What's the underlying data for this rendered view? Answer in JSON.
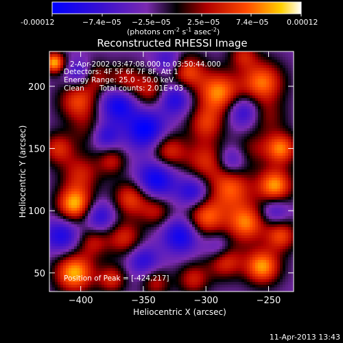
{
  "colorbar": {
    "ticks": [
      "-0.00012",
      "−7.4e−05",
      "−2.5e−05",
      "2.5e−05",
      "7.4e−05",
      "0.00012"
    ],
    "units": "(photons cm",
    "units_sup1": "-2",
    "units_mid": " s",
    "units_sup2": "-1",
    "units_end": " asec",
    "units_sup3": "-2",
    "units_close": ")"
  },
  "chart_data": {
    "type": "heatmap",
    "title": "Reconstructed RHESSI Image",
    "xlabel": "Heliocentric X (arcsec)",
    "ylabel": "Heliocentric Y (arcsec)",
    "xlim": [
      -425,
      -230
    ],
    "ylim": [
      35,
      228
    ],
    "xticks": [
      -400,
      -350,
      -300,
      -250
    ],
    "yticks": [
      50,
      100,
      150,
      200
    ],
    "colormap": "hot-blue",
    "clim": [
      -0.00012,
      0.00012
    ],
    "annotations": [
      "2-Apr-2002 03:47:08.000 to 03:50:44.000",
      "Detectors: 4F 5F 6F 7F 8F, Att 1",
      "Energy Range: 25.0 - 50.0 keV",
      "Clean",
      "Total counts: 2.01E+03",
      "Position of Peak = [-424,217]"
    ],
    "blobs": [
      {
        "x": -421,
        "y": 219,
        "v": 1.0,
        "r": 6
      },
      {
        "x": -390,
        "y": 208,
        "v": 0.55,
        "r": 9
      },
      {
        "x": -402,
        "y": 188,
        "v": 0.7,
        "r": 11
      },
      {
        "x": -395,
        "y": 165,
        "v": 0.3,
        "r": 10
      },
      {
        "x": -365,
        "y": 205,
        "v": 0.5,
        "r": 9
      },
      {
        "x": -345,
        "y": 197,
        "v": 0.55,
        "r": 10
      },
      {
        "x": -315,
        "y": 212,
        "v": 0.7,
        "r": 10
      },
      {
        "x": -290,
        "y": 195,
        "v": 0.9,
        "r": 12
      },
      {
        "x": -255,
        "y": 203,
        "v": 0.85,
        "r": 12
      },
      {
        "x": -270,
        "y": 225,
        "v": 0.5,
        "r": 8
      },
      {
        "x": -250,
        "y": 175,
        "v": 0.35,
        "r": 10
      },
      {
        "x": -300,
        "y": 170,
        "v": 0.6,
        "r": 10
      },
      {
        "x": -330,
        "y": 148,
        "v": 0.65,
        "r": 10
      },
      {
        "x": -300,
        "y": 140,
        "v": 0.6,
        "r": 12
      },
      {
        "x": -262,
        "y": 150,
        "v": 0.35,
        "r": 10
      },
      {
        "x": -240,
        "y": 150,
        "v": 0.85,
        "r": 9
      },
      {
        "x": -245,
        "y": 120,
        "v": 0.95,
        "r": 10
      },
      {
        "x": -280,
        "y": 118,
        "v": 0.75,
        "r": 12
      },
      {
        "x": -300,
        "y": 95,
        "v": 0.8,
        "r": 11
      },
      {
        "x": -268,
        "y": 90,
        "v": 0.85,
        "r": 11
      },
      {
        "x": -240,
        "y": 80,
        "v": 0.7,
        "r": 9
      },
      {
        "x": -255,
        "y": 55,
        "v": 0.95,
        "r": 10
      },
      {
        "x": -285,
        "y": 60,
        "v": 0.7,
        "r": 10
      },
      {
        "x": -310,
        "y": 45,
        "v": 0.55,
        "r": 9
      },
      {
        "x": -360,
        "y": 110,
        "v": 0.7,
        "r": 10
      },
      {
        "x": -340,
        "y": 100,
        "v": 0.5,
        "r": 9
      },
      {
        "x": -365,
        "y": 78,
        "v": 0.6,
        "r": 10
      },
      {
        "x": -400,
        "y": 130,
        "v": 0.55,
        "r": 11
      },
      {
        "x": -418,
        "y": 150,
        "v": 0.6,
        "r": 9
      },
      {
        "x": -405,
        "y": 105,
        "v": 1.0,
        "r": 10
      },
      {
        "x": -375,
        "y": 140,
        "v": 0.5,
        "r": 8
      },
      {
        "x": -390,
        "y": 75,
        "v": 0.5,
        "r": 9
      },
      {
        "x": -405,
        "y": 50,
        "v": 1.0,
        "r": 11
      },
      {
        "x": -375,
        "y": 45,
        "v": 0.6,
        "r": 8
      },
      {
        "x": -340,
        "y": 42,
        "v": 0.5,
        "r": 8
      },
      {
        "x": -348,
        "y": 165,
        "v": -0.8,
        "r": 11
      },
      {
        "x": -370,
        "y": 185,
        "v": -0.7,
        "r": 10
      },
      {
        "x": -325,
        "y": 190,
        "v": -0.6,
        "r": 9
      },
      {
        "x": -340,
        "y": 125,
        "v": -0.75,
        "r": 11
      },
      {
        "x": -310,
        "y": 115,
        "v": -0.6,
        "r": 9
      },
      {
        "x": -320,
        "y": 80,
        "v": -0.7,
        "r": 10
      },
      {
        "x": -290,
        "y": 70,
        "v": -0.45,
        "r": 8
      },
      {
        "x": -385,
        "y": 95,
        "v": -0.55,
        "r": 9
      },
      {
        "x": -415,
        "y": 80,
        "v": -0.6,
        "r": 10
      },
      {
        "x": -400,
        "y": 210,
        "v": -0.6,
        "r": 8
      },
      {
        "x": -270,
        "y": 180,
        "v": -0.55,
        "r": 9
      },
      {
        "x": -245,
        "y": 100,
        "v": -0.45,
        "r": 8
      },
      {
        "x": -280,
        "y": 140,
        "v": -0.5,
        "r": 8
      },
      {
        "x": -350,
        "y": 60,
        "v": -0.5,
        "r": 9
      },
      {
        "x": -330,
        "y": 220,
        "v": -0.45,
        "r": 8
      },
      {
        "x": -380,
        "y": 160,
        "v": -0.5,
        "r": 8
      }
    ]
  },
  "footer": {
    "timestamp": "11-Apr-2013 13:43"
  }
}
